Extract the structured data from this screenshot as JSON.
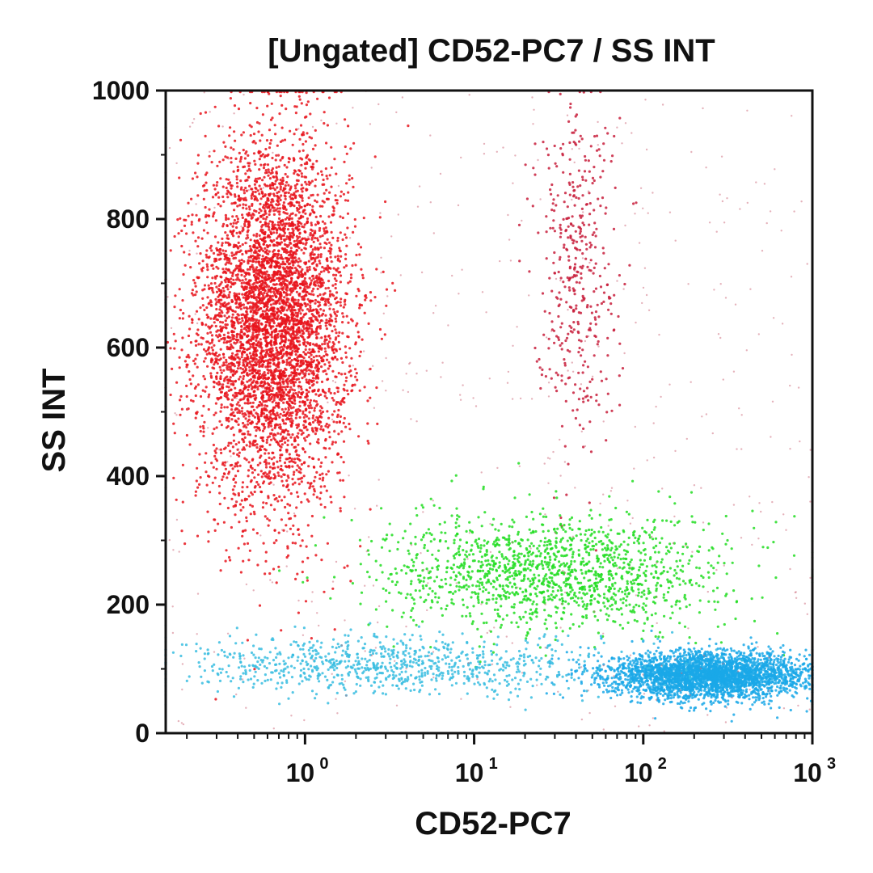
{
  "chart_data": {
    "type": "scatter",
    "title": "[Ungated] CD52-PC7 / SS INT",
    "xlabel": "CD52-PC7",
    "ylabel": "SS INT",
    "x_scale": "log",
    "xlim": [
      0.15,
      1000
    ],
    "ylim": [
      0,
      1000
    ],
    "x_ticks": [
      {
        "value": 1,
        "base": "10",
        "exp": "0"
      },
      {
        "value": 10,
        "base": "10",
        "exp": "1"
      },
      {
        "value": 100,
        "base": "10",
        "exp": "2"
      },
      {
        "value": 1000,
        "base": "10",
        "exp": "3"
      }
    ],
    "y_ticks": [
      {
        "value": 0,
        "label": "0"
      },
      {
        "value": 200,
        "label": "200"
      },
      {
        "value": 400,
        "label": "400"
      },
      {
        "value": 600,
        "label": "600"
      },
      {
        "value": 800,
        "label": "800"
      },
      {
        "value": 1000,
        "label": "1000"
      }
    ],
    "grid": false,
    "populations": [
      {
        "color": "#e8141c",
        "center_x": 0.65,
        "center_y": 640,
        "spread_log10x": 0.22,
        "spread_y": 140,
        "count": 5200
      },
      {
        "color": "#c81e3c",
        "center_x": 40,
        "center_y": 730,
        "spread_log10x": 0.12,
        "spread_y": 130,
        "count": 420
      },
      {
        "color": "#22dd22",
        "center_x": 30,
        "center_y": 250,
        "spread_log10x": 0.5,
        "spread_y": 45,
        "count": 1500
      },
      {
        "color": "#1aa8e8",
        "center_x": 250,
        "center_y": 90,
        "spread_log10x": 0.3,
        "spread_y": 18,
        "count": 3200
      },
      {
        "color": "#38bde0",
        "center_x": 3,
        "center_y": 105,
        "spread_log10x": 0.7,
        "spread_y": 22,
        "count": 900
      }
    ],
    "background_noise": {
      "color": "#cc6677",
      "count": 500
    }
  }
}
